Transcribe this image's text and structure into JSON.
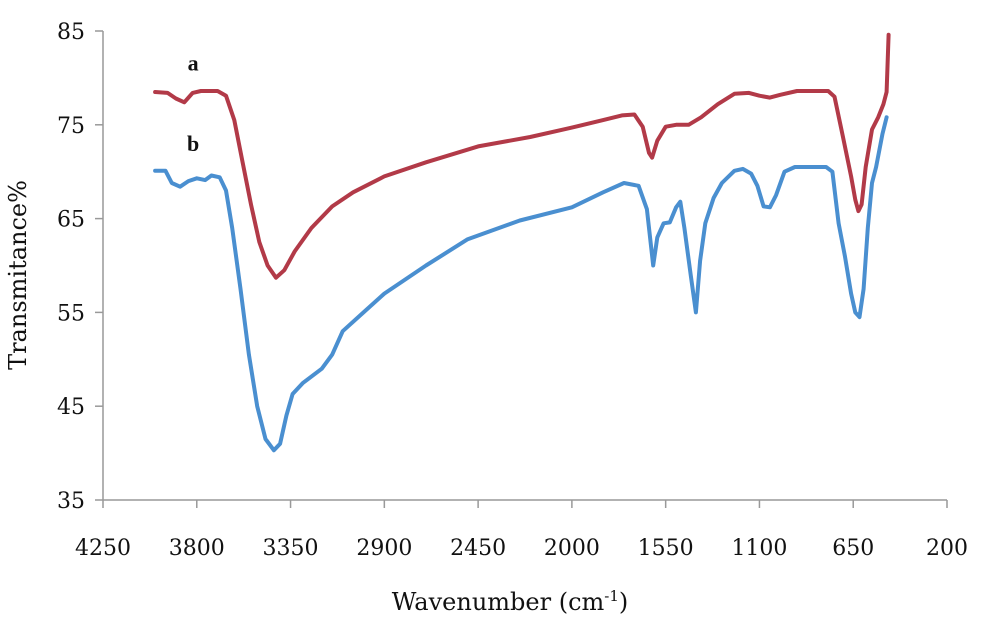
{
  "chart_data": {
    "type": "line",
    "title": "",
    "xlabel": "Wavenumber (cm-1)",
    "ylabel": "Transmitance%",
    "xlim": [
      4250,
      200
    ],
    "ylim": [
      35,
      85
    ],
    "x_reversed": true,
    "x_ticks": [
      4250,
      3800,
      3350,
      2900,
      2450,
      2000,
      1550,
      1100,
      650,
      200
    ],
    "y_ticks": [
      35,
      45,
      55,
      65,
      75,
      85
    ],
    "grid": false,
    "series": [
      {
        "name": "a",
        "color": "#b23a48",
        "points": [
          [
            4000,
            78.5
          ],
          [
            3940,
            78.4
          ],
          [
            3900,
            77.8
          ],
          [
            3860,
            77.4
          ],
          [
            3820,
            78.4
          ],
          [
            3780,
            78.6
          ],
          [
            3700,
            78.6
          ],
          [
            3660,
            78.1
          ],
          [
            3620,
            75.5
          ],
          [
            3580,
            71.0
          ],
          [
            3540,
            66.5
          ],
          [
            3500,
            62.5
          ],
          [
            3460,
            60.0
          ],
          [
            3420,
            58.7
          ],
          [
            3380,
            59.5
          ],
          [
            3330,
            61.5
          ],
          [
            3250,
            64.0
          ],
          [
            3150,
            66.3
          ],
          [
            3050,
            67.8
          ],
          [
            2900,
            69.5
          ],
          [
            2700,
            71.0
          ],
          [
            2450,
            72.7
          ],
          [
            2200,
            73.7
          ],
          [
            2000,
            74.7
          ],
          [
            1850,
            75.5
          ],
          [
            1760,
            76.0
          ],
          [
            1700,
            76.1
          ],
          [
            1660,
            74.8
          ],
          [
            1630,
            72.0
          ],
          [
            1615,
            71.5
          ],
          [
            1590,
            73.3
          ],
          [
            1550,
            74.8
          ],
          [
            1500,
            75.0
          ],
          [
            1440,
            75.0
          ],
          [
            1380,
            75.8
          ],
          [
            1300,
            77.2
          ],
          [
            1220,
            78.3
          ],
          [
            1150,
            78.4
          ],
          [
            1100,
            78.1
          ],
          [
            1050,
            77.9
          ],
          [
            1000,
            78.2
          ],
          [
            920,
            78.6
          ],
          [
            850,
            78.6
          ],
          [
            770,
            78.6
          ],
          [
            740,
            78.0
          ],
          [
            700,
            73.8
          ],
          [
            660,
            69.5
          ],
          [
            640,
            67.0
          ],
          [
            625,
            65.8
          ],
          [
            610,
            66.5
          ],
          [
            590,
            70.5
          ],
          [
            560,
            74.5
          ],
          [
            530,
            75.8
          ],
          [
            505,
            77.2
          ],
          [
            490,
            78.5
          ],
          [
            480,
            84.6
          ]
        ]
      },
      {
        "name": "b",
        "color": "#4a8fd0",
        "points": [
          [
            4000,
            70.1
          ],
          [
            3950,
            70.1
          ],
          [
            3920,
            68.8
          ],
          [
            3880,
            68.4
          ],
          [
            3840,
            69.0
          ],
          [
            3800,
            69.3
          ],
          [
            3760,
            69.1
          ],
          [
            3730,
            69.6
          ],
          [
            3690,
            69.4
          ],
          [
            3660,
            68.0
          ],
          [
            3630,
            64.0
          ],
          [
            3590,
            57.5
          ],
          [
            3550,
            50.5
          ],
          [
            3510,
            45.0
          ],
          [
            3470,
            41.5
          ],
          [
            3430,
            40.3
          ],
          [
            3400,
            41.0
          ],
          [
            3370,
            44.0
          ],
          [
            3340,
            46.3
          ],
          [
            3290,
            47.5
          ],
          [
            3200,
            49.0
          ],
          [
            3150,
            50.5
          ],
          [
            3100,
            53.0
          ],
          [
            3000,
            55.0
          ],
          [
            2900,
            57.0
          ],
          [
            2700,
            60.0
          ],
          [
            2500,
            62.8
          ],
          [
            2250,
            64.8
          ],
          [
            2000,
            66.2
          ],
          [
            1850,
            67.8
          ],
          [
            1750,
            68.8
          ],
          [
            1680,
            68.5
          ],
          [
            1640,
            66.0
          ],
          [
            1610,
            60.0
          ],
          [
            1590,
            63.0
          ],
          [
            1560,
            64.5
          ],
          [
            1530,
            64.6
          ],
          [
            1500,
            66.2
          ],
          [
            1480,
            66.8
          ],
          [
            1460,
            64.0
          ],
          [
            1430,
            59.0
          ],
          [
            1405,
            55.0
          ],
          [
            1385,
            60.5
          ],
          [
            1360,
            64.5
          ],
          [
            1320,
            67.2
          ],
          [
            1280,
            68.8
          ],
          [
            1220,
            70.1
          ],
          [
            1180,
            70.3
          ],
          [
            1140,
            69.8
          ],
          [
            1110,
            68.5
          ],
          [
            1080,
            66.3
          ],
          [
            1050,
            66.2
          ],
          [
            1020,
            67.5
          ],
          [
            980,
            70.0
          ],
          [
            930,
            70.5
          ],
          [
            870,
            70.5
          ],
          [
            780,
            70.5
          ],
          [
            750,
            70.0
          ],
          [
            720,
            64.5
          ],
          [
            690,
            61.0
          ],
          [
            660,
            57.0
          ],
          [
            640,
            55.0
          ],
          [
            620,
            54.5
          ],
          [
            600,
            57.5
          ],
          [
            580,
            64.0
          ],
          [
            560,
            68.8
          ],
          [
            540,
            70.5
          ],
          [
            510,
            74.0
          ],
          [
            490,
            75.8
          ]
        ]
      }
    ]
  }
}
